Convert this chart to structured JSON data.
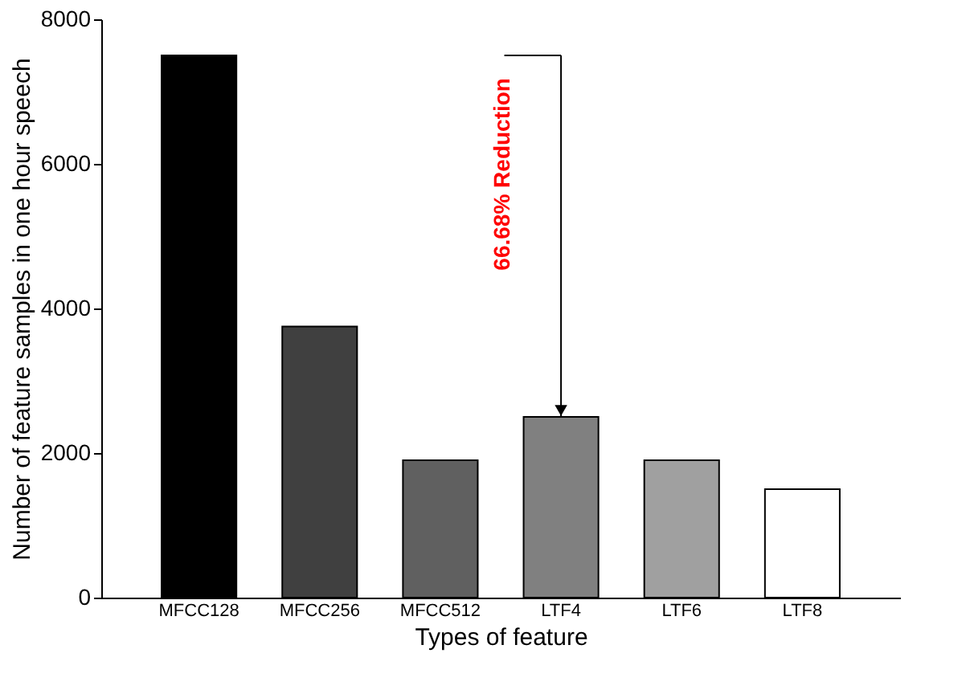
{
  "chart_data": {
    "type": "bar",
    "xlabel": "Types of feature",
    "ylabel": "Number of feature samples in one hour speech",
    "categories": [
      "MFCC128",
      "MFCC256",
      "MFCC512",
      "LTF4",
      "LTF6",
      "LTF8"
    ],
    "values": [
      7500,
      3750,
      1900,
      2500,
      1900,
      1500
    ],
    "colors": [
      "#000000",
      "#404040",
      "#606060",
      "#808080",
      "#a0a0a0",
      "#ffffff"
    ],
    "ylim": [
      0,
      8000
    ],
    "yticks": [
      0,
      2000,
      4000,
      6000,
      8000
    ],
    "grid": false,
    "annotations": [
      "66.68% Reduction"
    ]
  }
}
